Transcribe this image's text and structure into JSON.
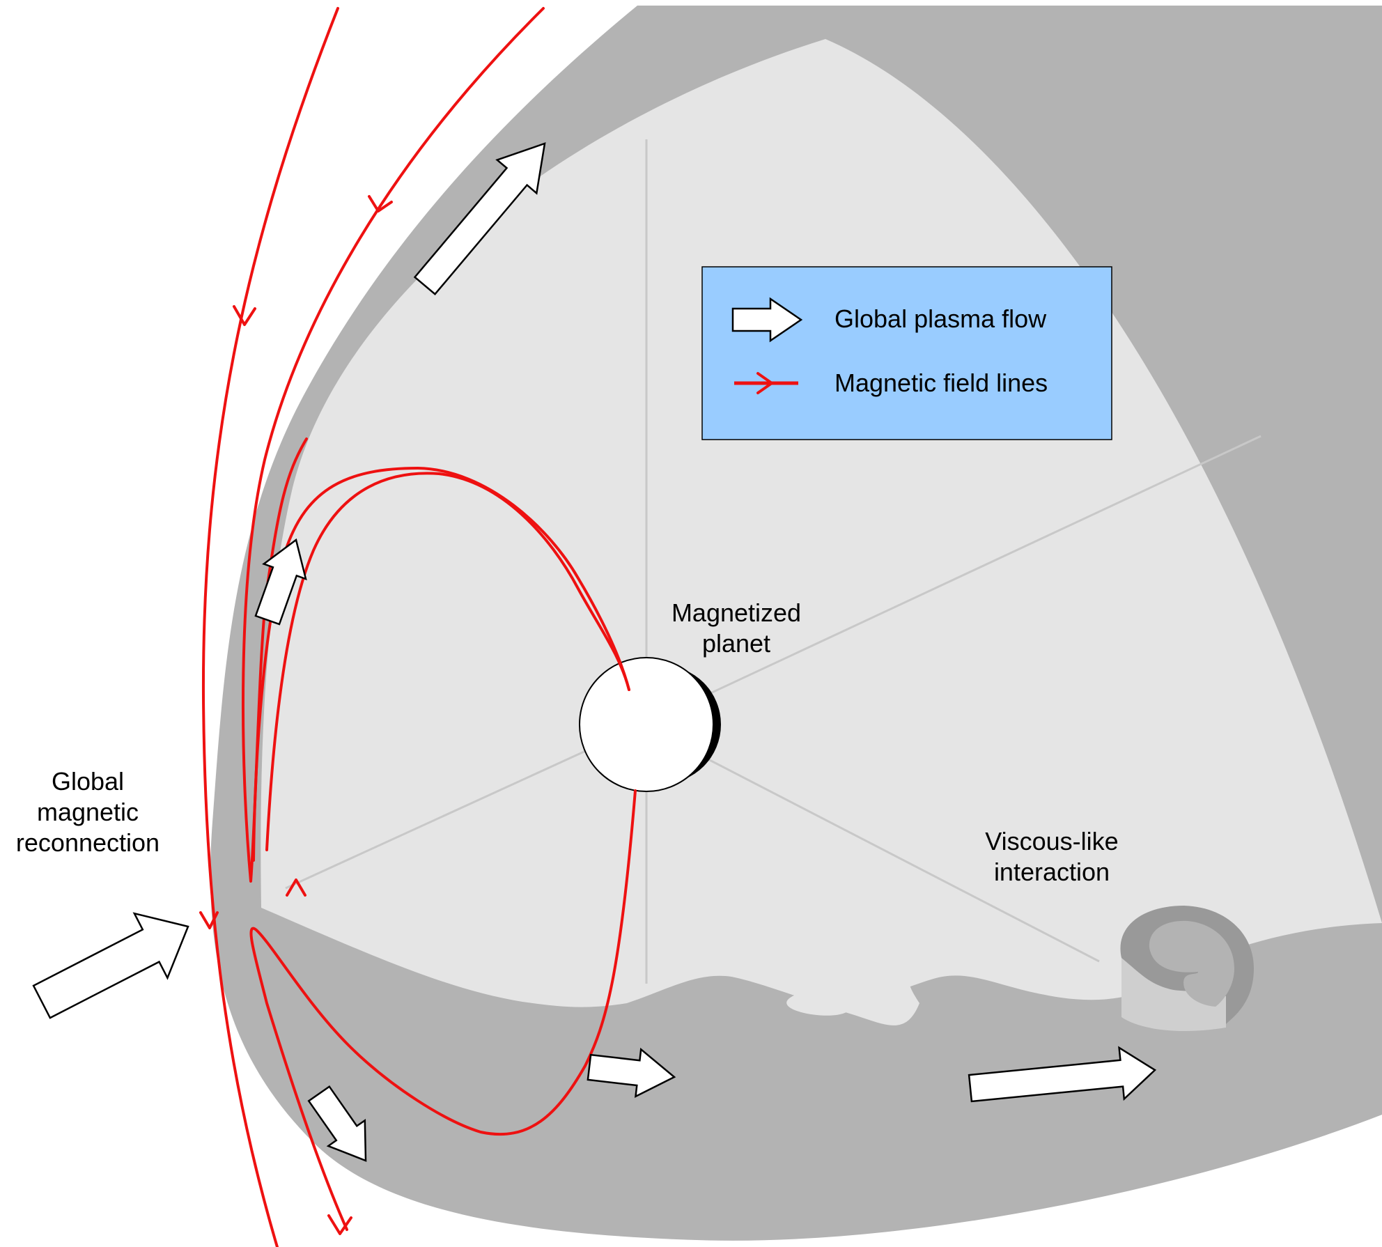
{
  "legend": {
    "flow_label": "Global plasma flow",
    "field_label": "Magnetic field lines"
  },
  "labels": {
    "planet_line1": "Magnetized",
    "planet_line2": "planet",
    "reconnection_line1": "Global",
    "reconnection_line2": "magnetic",
    "reconnection_line3": "reconnection",
    "viscous_line1": "Viscous-like",
    "viscous_line2": "interaction"
  },
  "colors": {
    "field_line": "#ee1111",
    "sheath": "#b3b3b3",
    "cavity": "#e5e5e5",
    "legend_fill": "#99ccff",
    "arrow_fill": "#ffffff",
    "planet_night": "#000000"
  },
  "icons": {
    "flow": "white-block-arrow",
    "field": "red-line-with-chevron",
    "planet": "sphere-with-night-side"
  }
}
